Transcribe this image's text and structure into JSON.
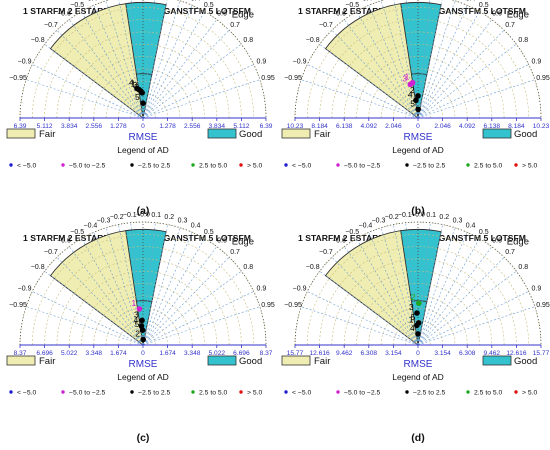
{
  "figure": {
    "methods_label": "1 STARFM  2 ESTARFM   3 FSDAF   4 GANSTFM  5 LOTSFM",
    "region_labels": {
      "edge": "Edge",
      "fair": "Fair",
      "good": "Good"
    },
    "axis_label": "RMSE",
    "legend_title": "Legend of AD",
    "ad_legend": [
      {
        "label": "< −5.0",
        "color": "#1f1fd0"
      },
      {
        "label": "−5.0 to −2.5",
        "color": "#d020d0"
      },
      {
        "label": "−2.5 to 2.5",
        "color": "#000000"
      },
      {
        "label": "2.5 to 5.0",
        "color": "#1fa81f"
      },
      {
        "label": "> 5.0",
        "color": "#e01010"
      }
    ],
    "corr_tick_labels": [
      "−0.0",
      "0.1",
      "0.2",
      "0.3",
      "0.4",
      "0.5",
      "0.6",
      "0.7",
      "0.8",
      "0.9",
      "0.95",
      "−0.1",
      "−0.2",
      "−0.3",
      "−0.4",
      "−0.5",
      "−0.6",
      "−0.7",
      "−0.8",
      "−0.9",
      "−0.95"
    ],
    "colors": {
      "fair": "#efedb1",
      "good": "#34c3ce",
      "axis": "#3333cc",
      "grid_radial": "#6d9ed3",
      "grid_arc": "#c7bd7d"
    }
  },
  "chart_data": [
    {
      "panel": "(a)",
      "type": "scatter",
      "rmse_ticks": [
        "6.39",
        "5.112",
        "3.834",
        "2.556",
        "1.278",
        "0",
        "1.278",
        "2.556",
        "3.834",
        "5.112",
        "6.39"
      ],
      "points": [
        {
          "id": "1",
          "corr": -0.15,
          "rmse": 2.35,
          "ad": "-2.5 to 2.5",
          "label_color": "#000000"
        },
        {
          "id": "2",
          "corr": -0.03,
          "rmse": 2.05,
          "ad": "-2.5 to 2.5",
          "label_color": "#000000"
        },
        {
          "id": "3",
          "corr": -0.08,
          "rmse": 2.2,
          "ad": "-2.5 to 2.5",
          "label_color": "#000000"
        },
        {
          "id": "4",
          "corr": -0.2,
          "rmse": 2.45,
          "ad": "-2.5 to 2.5",
          "label_color": "#000000"
        },
        {
          "id": "5",
          "corr": 0.0,
          "rmse": 1.2,
          "ad": "-2.5 to 2.5",
          "label_color": "#000000"
        }
      ]
    },
    {
      "panel": "(b)",
      "type": "scatter",
      "rmse_ticks": [
        "10.23",
        "8.184",
        "6.138",
        "4.092",
        "2.046",
        "0",
        "2.046",
        "4.092",
        "6.138",
        "8.184",
        "10.23"
      ],
      "points": [
        {
          "id": "1",
          "corr": -0.15,
          "rmse": 2.9,
          "ad": "-5.0 to -2.5",
          "label_color": "#d020d0"
        },
        {
          "id": "2",
          "corr": 0.0,
          "rmse": 1.8,
          "ad": "-2.5 to 2.5",
          "label_color": "#000000"
        },
        {
          "id": "3",
          "corr": -0.22,
          "rmse": 2.8,
          "ad": "-5.0 to -2.5",
          "label_color": "#d020d0"
        },
        {
          "id": "4",
          "corr": -0.12,
          "rmse": 1.45,
          "ad": "-2.5 to 2.5",
          "label_color": "#000000"
        },
        {
          "id": "5",
          "corr": 0.02,
          "rmse": 0.7,
          "ad": "-2.5 to 2.5",
          "label_color": "#000000"
        }
      ]
    },
    {
      "panel": "(c)",
      "type": "scatter",
      "rmse_ticks": [
        "8.37",
        "6.696",
        "5.022",
        "3.348",
        "1.674",
        "0",
        "1.674",
        "3.348",
        "5.022",
        "6.696",
        "8.37"
      ],
      "points": [
        {
          "id": "1",
          "corr": -0.1,
          "rmse": 2.95,
          "ad": "-5.0 to -2.5",
          "label_color": "#d020d0"
        },
        {
          "id": "2",
          "corr": 0.04,
          "rmse": 0.45,
          "ad": "-2.5 to 2.5",
          "label_color": "#000000"
        },
        {
          "id": "3",
          "corr": -0.04,
          "rmse": 2.0,
          "ad": "-2.5 to 2.5",
          "label_color": "#000000"
        },
        {
          "id": "4",
          "corr": -0.08,
          "rmse": 1.55,
          "ad": "-2.5 to 2.5",
          "label_color": "#000000"
        },
        {
          "id": "5",
          "corr": -0.03,
          "rmse": 1.2,
          "ad": "-2.5 to 2.5",
          "label_color": "#000000"
        }
      ]
    },
    {
      "panel": "(d)",
      "type": "scatter",
      "rmse_ticks": [
        "15.77",
        "12.616",
        "9.462",
        "6.308",
        "3.154",
        "0",
        "3.154",
        "6.308",
        "9.462",
        "12.616",
        "15.77"
      ],
      "points": [
        {
          "id": "1",
          "corr": -0.06,
          "rmse": 1.6,
          "ad": "-2.5 to 2.5",
          "label_color": "#000000"
        },
        {
          "id": "2",
          "corr": 0.02,
          "rmse": 3.4,
          "ad": "2.5 to 5.0",
          "label_color": "#1fa81f"
        },
        {
          "id": "3",
          "corr": -0.03,
          "rmse": 2.6,
          "ad": "-2.5 to 2.5",
          "label_color": "#000000"
        },
        {
          "id": "4",
          "corr": 0.0,
          "rmse": 0.9,
          "ad": "-2.5 to 2.5",
          "label_color": "#000000"
        },
        {
          "id": "5",
          "corr": 0.03,
          "rmse": 1.8,
          "ad": "-2.5 to 2.5",
          "label_color": "#000000"
        }
      ]
    }
  ]
}
